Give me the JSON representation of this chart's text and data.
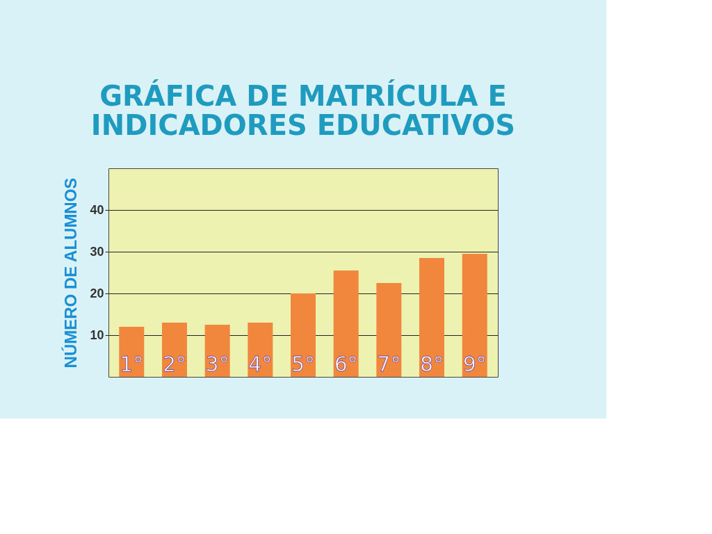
{
  "chart_data": {
    "type": "bar",
    "title": [
      "GRÁFICA DE MATRÍCULA E",
      "INDICADORES EDUCATIVOS"
    ],
    "ylabel": "NÚMERO DE ALUMNOS",
    "categories": [
      "1°",
      "2°",
      "3°",
      "4°",
      "5°",
      "6°",
      "7°",
      "8°",
      "9°"
    ],
    "values": [
      12,
      13,
      12.5,
      13,
      20,
      25.5,
      22.5,
      28.5,
      29.5
    ],
    "color": "#f0873c",
    "ylim": [
      0,
      50
    ],
    "yticks": [
      10,
      20,
      30,
      40
    ],
    "grid": "y"
  }
}
